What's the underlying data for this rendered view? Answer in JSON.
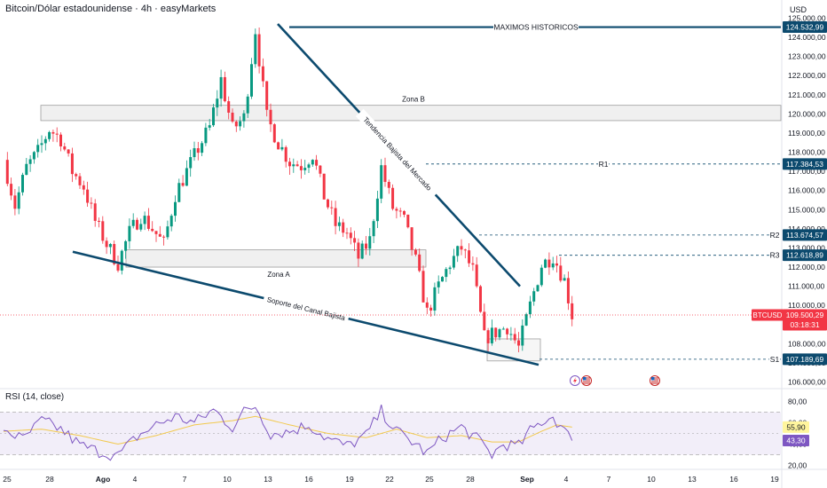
{
  "header": {
    "title": "Bitcoin/Dólar estadounidense · 4h · easyMarkets",
    "currency": "USD"
  },
  "rsi_panel": {
    "title": "RSI (14, close)"
  },
  "colors": {
    "up": "#089981",
    "down": "#f23645",
    "annotation": "#0c4a6e",
    "rsi_line": "#7e57c2",
    "rsi_ma": "#f2c94c",
    "rsi_band": "#ede7f6",
    "price_badge": "#f23645",
    "rsi_ma_badge": "#fff59d",
    "rsi_badge": "#7e57c2"
  },
  "chart_data": [
    {
      "type": "candlestick",
      "timeframe": "4h",
      "symbol": "BTCUSD",
      "xaxis_ticks": [
        "25",
        "28",
        "Ago",
        "4",
        "7",
        "10",
        "13",
        "16",
        "19",
        "22",
        "25",
        "28",
        "Sep",
        "4",
        "7",
        "10",
        "13",
        "16",
        "19"
      ],
      "yaxis_ticks": [
        "125.000,00",
        "124.000,00",
        "123.000,00",
        "122.000,00",
        "121.000,00",
        "120.000,00",
        "119.000,00",
        "118.000,00",
        "117.000,00",
        "116.000,00",
        "115.000,00",
        "114.000,00",
        "113.000,00",
        "112.000,00",
        "111.000,00",
        "110.000,00",
        "109.000,00",
        "108.000,00",
        "107.000,00",
        "106.000,00"
      ],
      "ylim": [
        105700,
        125300
      ],
      "close_path": [
        [
          0,
          117600
        ],
        [
          3,
          115200
        ],
        [
          6,
          117200
        ],
        [
          9,
          118000
        ],
        [
          12,
          119200
        ],
        [
          15,
          118700
        ],
        [
          18,
          117000
        ],
        [
          21,
          116200
        ],
        [
          24,
          114400
        ],
        [
          27,
          113200
        ],
        [
          30,
          112200
        ],
        [
          33,
          113800
        ],
        [
          36,
          114700
        ],
        [
          39,
          114000
        ],
        [
          42,
          113200
        ],
        [
          45,
          115800
        ],
        [
          48,
          117000
        ],
        [
          51,
          118200
        ],
        [
          54,
          119300
        ],
        [
          57,
          121800
        ],
        [
          60,
          119200
        ],
        [
          63,
          119800
        ],
        [
          66,
          124400
        ],
        [
          69,
          119800
        ],
        [
          72,
          118500
        ],
        [
          75,
          117500
        ],
        [
          78,
          117300
        ],
        [
          81,
          117900
        ],
        [
          84,
          115700
        ],
        [
          87,
          114200
        ],
        [
          90,
          113800
        ],
        [
          93,
          112500
        ],
        [
          96,
          113400
        ],
        [
          99,
          117200
        ],
        [
          102,
          115100
        ],
        [
          105,
          114400
        ],
        [
          108,
          112300
        ],
        [
          111,
          109600
        ],
        [
          114,
          111000
        ],
        [
          117,
          112200
        ],
        [
          120,
          113000
        ],
        [
          123,
          111800
        ],
        [
          126,
          108300
        ],
        [
          129,
          108600
        ],
        [
          132,
          108900
        ],
        [
          135,
          107800
        ],
        [
          138,
          110000
        ],
        [
          141,
          112100
        ],
        [
          144,
          112600
        ],
        [
          147,
          111300
        ],
        [
          149,
          109500
        ]
      ],
      "horizontal_levels": [
        {
          "label": "MAXIMOS HISTORICOS",
          "value": 124532.99,
          "value_text": "124.532,99"
        },
        {
          "label": "R1",
          "value": 117384.53,
          "value_text": "117.384,53"
        },
        {
          "label": "R2",
          "value": 113674.57,
          "value_text": "113.674,57"
        },
        {
          "label": "R3",
          "value": 112618.89,
          "value_text": "112.618,89"
        },
        {
          "label": "S1",
          "value": 107189.69,
          "value_text": "107.189,69"
        }
      ],
      "zones": [
        {
          "label": "Zona B",
          "from": 119650,
          "to": 120450
        },
        {
          "label": "Zona A",
          "from": 112000,
          "to": 112900
        }
      ],
      "trendlines": [
        {
          "label": "Tendencia Bajista del Mercado",
          "start_bar": 66,
          "start": 124700,
          "end_bar": 128,
          "end": 111000
        },
        {
          "label": "Soporte del Canal Bajista",
          "start_bar": 8,
          "start": 112800,
          "end_bar": 131,
          "end": 106900
        }
      ],
      "current_price": {
        "symbol": "BTCUSD",
        "value": 109500.29,
        "value_text": "109.500,29",
        "countdown": "03:18:31"
      }
    },
    {
      "type": "line",
      "indicator": "RSI (14, close)",
      "yaxis_ticks": [
        "80,00",
        "60,00",
        "40,00",
        "20,00"
      ],
      "ylim": [
        18,
        82
      ],
      "bands": [
        30,
        70
      ],
      "rsi_path": [
        [
          0,
          55
        ],
        [
          5,
          44
        ],
        [
          10,
          62
        ],
        [
          15,
          54
        ],
        [
          20,
          39
        ],
        [
          25,
          33
        ],
        [
          30,
          29
        ],
        [
          35,
          47
        ],
        [
          40,
          58
        ],
        [
          45,
          66
        ],
        [
          50,
          60
        ],
        [
          55,
          72
        ],
        [
          60,
          56
        ],
        [
          63,
          70
        ],
        [
          66,
          76
        ],
        [
          70,
          50
        ],
        [
          75,
          52
        ],
        [
          80,
          58
        ],
        [
          85,
          45
        ],
        [
          90,
          38
        ],
        [
          95,
          48
        ],
        [
          99,
          71
        ],
        [
          103,
          52
        ],
        [
          108,
          40
        ],
        [
          111,
          31
        ],
        [
          115,
          46
        ],
        [
          120,
          56
        ],
        [
          125,
          42
        ],
        [
          128,
          30
        ],
        [
          131,
          40
        ],
        [
          135,
          38
        ],
        [
          138,
          52
        ],
        [
          141,
          61
        ],
        [
          144,
          66
        ],
        [
          147,
          52
        ],
        [
          149,
          43.3
        ]
      ],
      "ma_path": [
        [
          0,
          52
        ],
        [
          10,
          54
        ],
        [
          20,
          48
        ],
        [
          30,
          40
        ],
        [
          40,
          48
        ],
        [
          50,
          58
        ],
        [
          60,
          62
        ],
        [
          66,
          66
        ],
        [
          75,
          58
        ],
        [
          85,
          50
        ],
        [
          95,
          46
        ],
        [
          103,
          54
        ],
        [
          111,
          46
        ],
        [
          120,
          48
        ],
        [
          128,
          42
        ],
        [
          135,
          42
        ],
        [
          141,
          52
        ],
        [
          145,
          58
        ],
        [
          149,
          55.9
        ]
      ],
      "rsi_value": 43.3,
      "rsi_value_text": "43,30",
      "ma_value": 55.9,
      "ma_value_text": "55,90"
    }
  ]
}
